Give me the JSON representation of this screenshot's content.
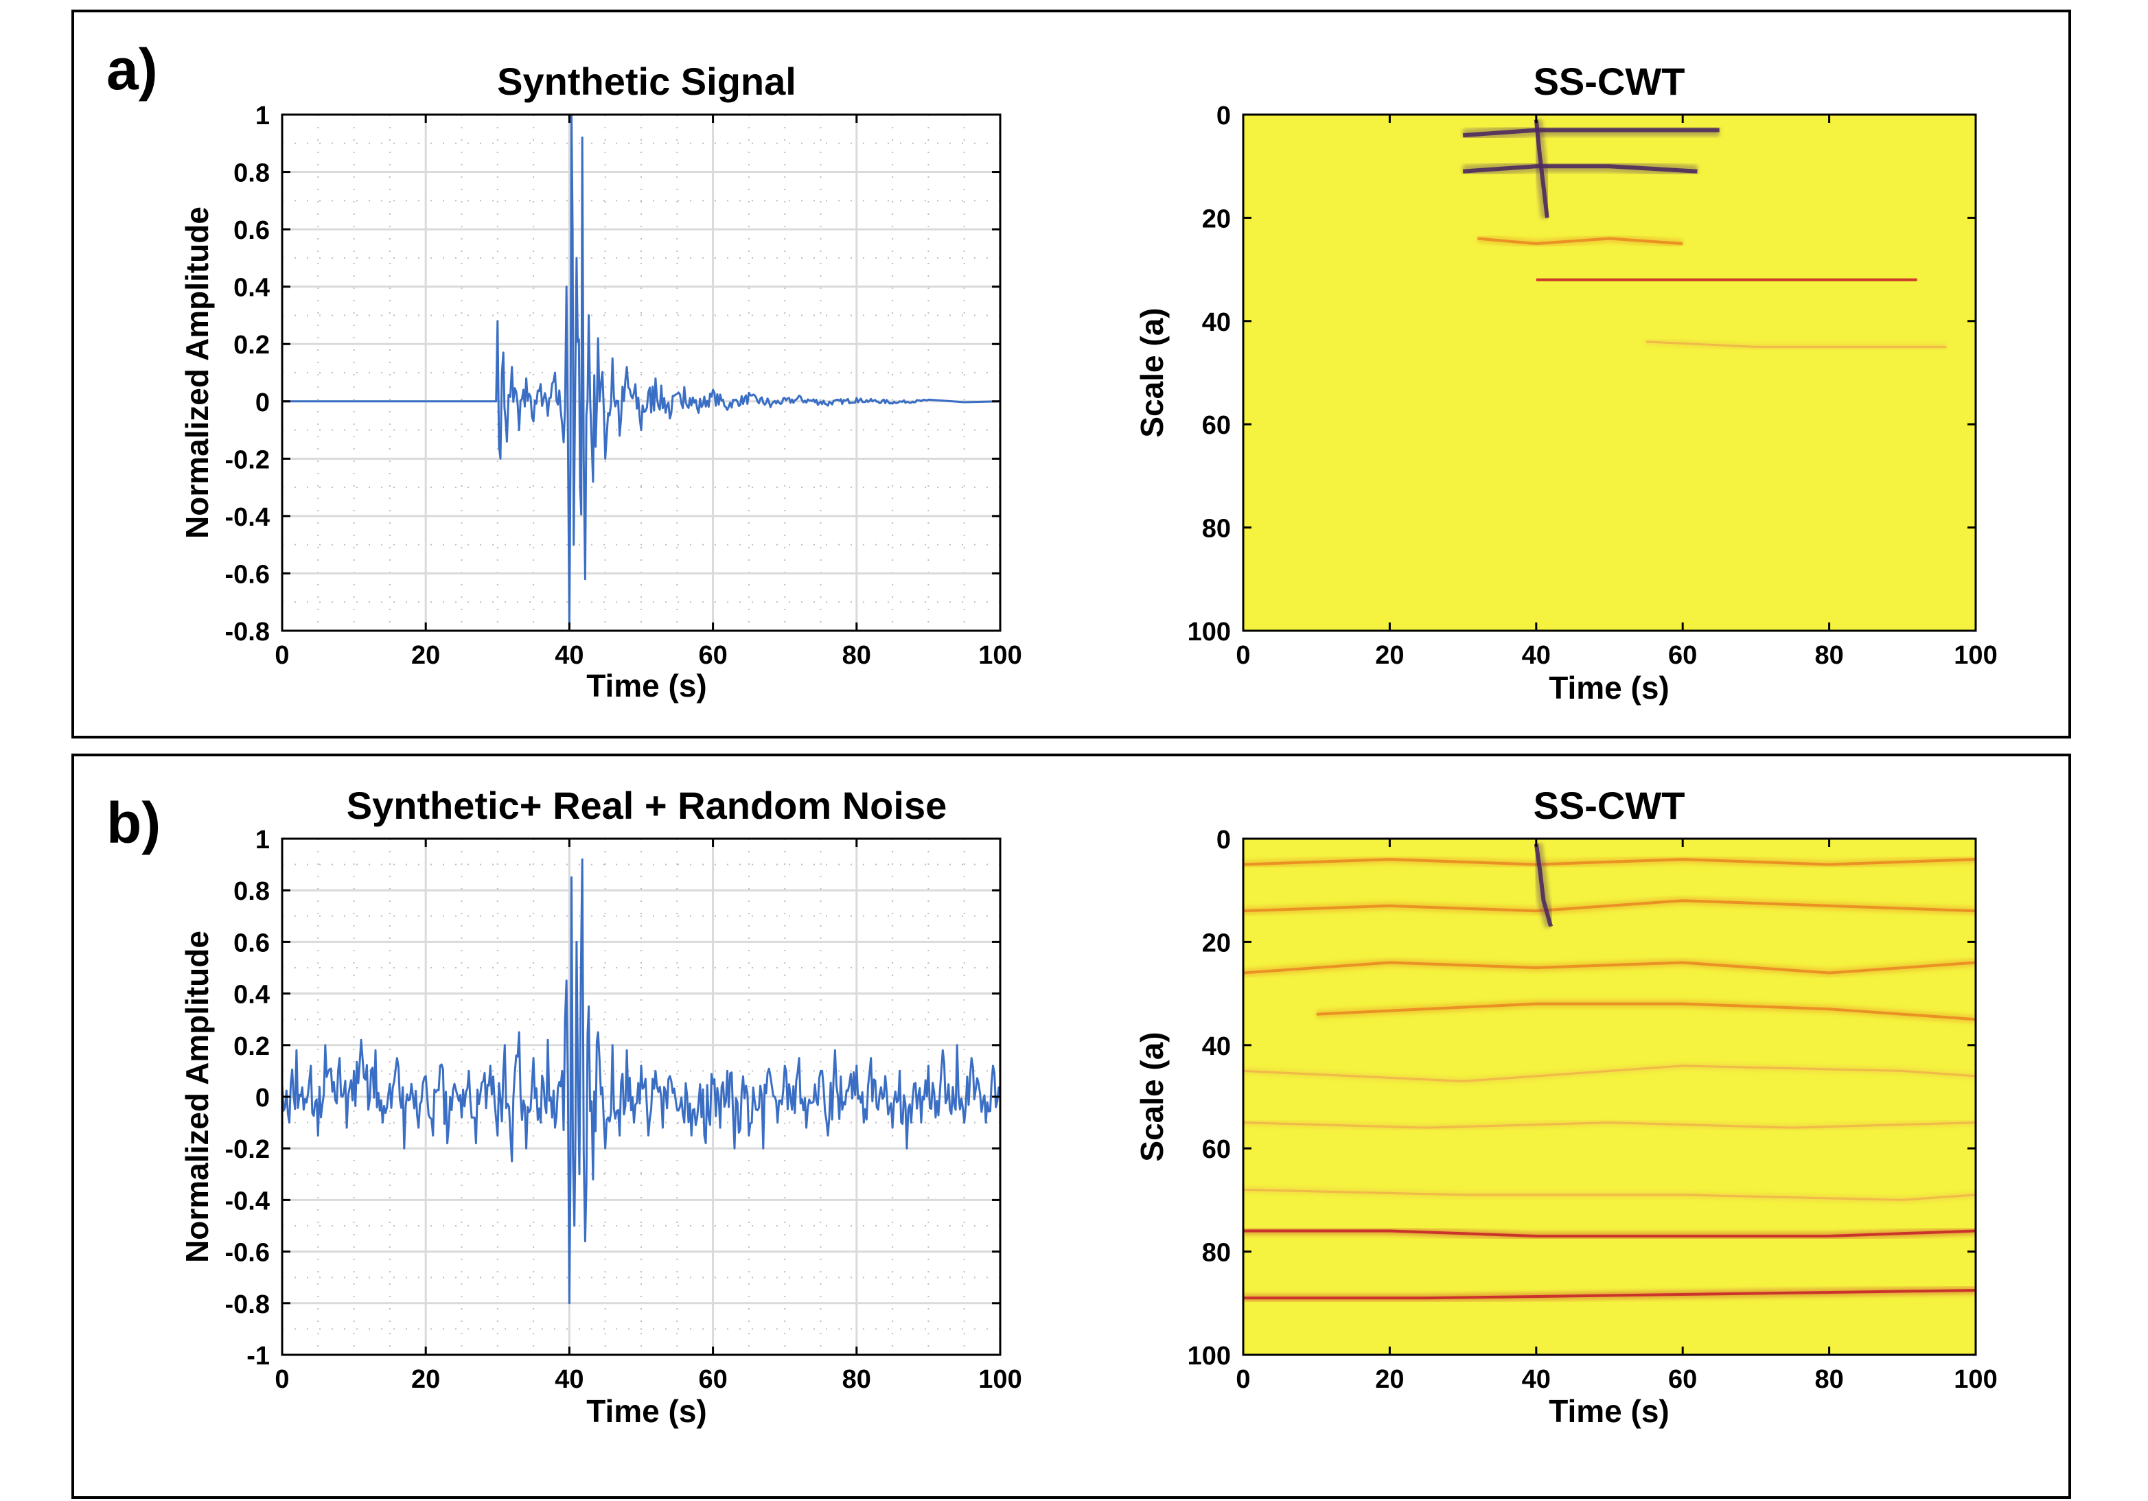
{
  "panels": [
    {
      "label": "a)"
    },
    {
      "label": "b)"
    }
  ],
  "colors": {
    "signal": "#3A6EC4",
    "grid": "#DADADA",
    "scalogram_bg": "#F5F33F",
    "ridge_orange": "#E98A22",
    "ridge_red": "#C7262A",
    "ridge_dark": "#4E2A5E"
  },
  "chart_data": [
    {
      "type": "line",
      "title": "Synthetic Signal",
      "xlabel": "Time (s)",
      "ylabel": "Normalized Amplitude",
      "xlim": [
        0,
        100
      ],
      "ylim": [
        -0.8,
        1
      ],
      "xticks": [
        "0",
        "20",
        "40",
        "60",
        "80",
        "100"
      ],
      "yticks": [
        "1",
        "0.8",
        "0.6",
        "0.4",
        "0.2",
        "0",
        "-0.2",
        "-0.4",
        "-0.6",
        "-0.8"
      ],
      "grid": true,
      "series": [
        {
          "description_points": "quiet until ~30 s, arrival at 30 s, strong burst at ~40–42 s, coda decaying to ~95 s",
          "x": [
            0,
            29.8,
            30.0,
            30.4,
            30.8,
            31.3,
            32,
            33,
            34,
            35,
            36,
            37,
            38,
            39,
            39.6,
            40.0,
            40.3,
            40.6,
            41.0,
            41.5,
            41.8,
            42.2,
            42.7,
            43.3,
            44,
            45,
            46,
            47,
            48,
            50,
            52,
            54,
            56,
            58,
            60,
            62,
            65,
            68,
            72,
            76,
            80,
            85,
            90,
            95,
            100
          ],
          "y": [
            0,
            0,
            0.28,
            -0.2,
            0.17,
            -0.14,
            0.12,
            -0.1,
            0.08,
            -0.07,
            0.06,
            -0.05,
            0.1,
            -0.08,
            0.4,
            -0.78,
            1.0,
            -0.5,
            0.5,
            -0.3,
            0.92,
            -0.62,
            0.3,
            -0.28,
            0.22,
            -0.2,
            0.15,
            -0.12,
            0.12,
            -0.1,
            0.08,
            -0.06,
            0.05,
            -0.04,
            0.04,
            -0.03,
            0.03,
            -0.02,
            0.02,
            -0.015,
            0.012,
            -0.008,
            0.006,
            -0.003,
            0
          ]
        }
      ]
    },
    {
      "type": "heatmap",
      "title": "SS-CWT",
      "xlabel": "Time  (s)",
      "ylabel": "Scale (a)",
      "xlim": [
        0,
        100
      ],
      "ylim": [
        0,
        100
      ],
      "y_reversed": true,
      "xticks": [
        "0",
        "20",
        "40",
        "60",
        "80",
        "100"
      ],
      "yticks": [
        "0",
        "20",
        "40",
        "60",
        "80",
        "100"
      ],
      "ridges": [
        {
          "x": [
            30,
            40,
            55,
            65
          ],
          "y": [
            4,
            3,
            3,
            3
          ],
          "intensity": "dark"
        },
        {
          "x": [
            30,
            40,
            50,
            62
          ],
          "y": [
            11,
            10,
            10,
            11
          ],
          "intensity": "dark"
        },
        {
          "x": [
            32,
            40,
            50,
            60
          ],
          "y": [
            24,
            25,
            24,
            25
          ],
          "intensity": "orange"
        },
        {
          "x": [
            40,
            50,
            60,
            70,
            80,
            92
          ],
          "y": [
            32,
            32,
            32,
            32,
            32,
            32
          ],
          "intensity": "red"
        },
        {
          "x": [
            55,
            70,
            85,
            96
          ],
          "y": [
            44,
            45,
            45,
            45
          ],
          "intensity": "faint"
        },
        {
          "x": [
            40,
            40.5,
            41,
            41.5
          ],
          "y": [
            1,
            8,
            14,
            20
          ],
          "intensity": "dark"
        }
      ]
    },
    {
      "type": "line",
      "title": "Synthetic+ Real + Random Noise",
      "xlabel": "Time (s)",
      "ylabel": "Normalized Amplitude",
      "xlim": [
        0,
        100
      ],
      "ylim": [
        -1,
        1
      ],
      "xticks": [
        "0",
        "20",
        "40",
        "60",
        "80",
        "100"
      ],
      "yticks": [
        "1",
        "0.8",
        "0.6",
        "0.4",
        "0.2",
        "0",
        "-0.2",
        "-0.4",
        "-0.6",
        "-0.8",
        "-1"
      ],
      "grid": true,
      "series": [
        {
          "x": [
            0,
            1,
            2,
            3,
            4,
            5,
            6,
            7,
            8,
            9,
            10,
            11,
            12,
            13,
            14,
            15,
            16,
            17,
            18,
            19,
            20,
            21,
            22,
            23,
            24,
            25,
            26,
            27,
            28,
            29,
            30,
            31,
            32,
            33,
            34,
            35,
            36,
            37,
            38,
            39,
            39.6,
            40.0,
            40.3,
            40.7,
            41.0,
            41.4,
            41.8,
            42.2,
            42.7,
            43.3,
            44,
            45,
            46,
            47,
            48,
            49,
            50,
            51,
            52,
            53,
            54,
            55,
            56,
            57,
            58,
            59,
            60,
            61,
            62,
            63,
            64,
            65,
            66,
            67,
            68,
            69,
            70,
            71,
            72,
            73,
            74,
            75,
            76,
            77,
            78,
            79,
            80,
            81,
            82,
            83,
            84,
            85,
            86,
            87,
            88,
            89,
            90,
            91,
            92,
            93,
            94,
            95,
            96,
            97,
            98,
            99,
            100
          ],
          "y": [
            0.05,
            -0.1,
            0.18,
            -0.05,
            0.12,
            -0.15,
            0.2,
            0.02,
            0.15,
            -0.12,
            0.1,
            0.22,
            -0.05,
            0.18,
            -0.1,
            0.05,
            0.15,
            -0.2,
            0.05,
            -0.12,
            0.08,
            -0.15,
            0.12,
            -0.18,
            0.05,
            -0.08,
            0.1,
            -0.18,
            0.06,
            0.12,
            -0.15,
            0.2,
            -0.25,
            0.25,
            -0.2,
            0.15,
            -0.1,
            0.22,
            -0.12,
            0.1,
            0.45,
            -0.8,
            0.85,
            -0.5,
            0.6,
            -0.3,
            0.92,
            -0.56,
            0.35,
            -0.32,
            0.25,
            -0.2,
            0.2,
            -0.15,
            0.18,
            -0.1,
            0.12,
            -0.15,
            0.1,
            -0.12,
            0.08,
            -0.05,
            -0.1,
            -0.15,
            -0.02,
            -0.18,
            0.05,
            -0.12,
            0.1,
            -0.2,
            0.02,
            -0.15,
            -0.05,
            -0.2,
            0.08,
            -0.1,
            0.12,
            -0.05,
            0.15,
            -0.12,
            -0.02,
            0.1,
            -0.15,
            0.18,
            -0.05,
            0.05,
            0.12,
            -0.1,
            0.15,
            -0.05,
            0.08,
            -0.12,
            0.1,
            -0.2,
            0.05,
            -0.1,
            0.12,
            -0.08,
            0.18,
            -0.05,
            0.2,
            -0.1,
            0.15,
            0.05,
            -0.1,
            0.12,
            0.02
          ]
        }
      ]
    },
    {
      "type": "heatmap",
      "title": "SS-CWT",
      "xlabel": "Time (s)",
      "ylabel": "Scale (a)",
      "xlim": [
        0,
        100
      ],
      "ylim": [
        0,
        100
      ],
      "y_reversed": true,
      "xticks": [
        "0",
        "20",
        "40",
        "60",
        "80",
        "100"
      ],
      "yticks": [
        "0",
        "20",
        "40",
        "60",
        "80",
        "100"
      ],
      "ridges": [
        {
          "x": [
            0,
            20,
            40,
            60,
            80,
            100
          ],
          "y": [
            5,
            4,
            5,
            4,
            5,
            4
          ],
          "intensity": "orange"
        },
        {
          "x": [
            0,
            20,
            40,
            60,
            80,
            100
          ],
          "y": [
            14,
            13,
            14,
            12,
            13,
            14
          ],
          "intensity": "orange"
        },
        {
          "x": [
            0,
            20,
            40,
            60,
            80,
            100
          ],
          "y": [
            26,
            24,
            25,
            24,
            26,
            24
          ],
          "intensity": "orange"
        },
        {
          "x": [
            10,
            40,
            60,
            80,
            100
          ],
          "y": [
            34,
            32,
            32,
            33,
            35
          ],
          "intensity": "orange"
        },
        {
          "x": [
            0,
            30,
            60,
            90,
            100
          ],
          "y": [
            45,
            47,
            44,
            45,
            46
          ],
          "intensity": "faint"
        },
        {
          "x": [
            0,
            25,
            50,
            75,
            100
          ],
          "y": [
            55,
            56,
            55,
            56,
            55
          ],
          "intensity": "faint"
        },
        {
          "x": [
            0,
            30,
            60,
            90,
            100
          ],
          "y": [
            68,
            69,
            69,
            70,
            69
          ],
          "intensity": "faint"
        },
        {
          "x": [
            0,
            20,
            40,
            60,
            80,
            100
          ],
          "y": [
            76,
            76,
            77,
            77,
            77,
            76
          ],
          "intensity": "red"
        },
        {
          "x": [
            0,
            25,
            50,
            75,
            100
          ],
          "y": [
            89,
            89,
            88.5,
            88,
            87.5
          ],
          "intensity": "red"
        },
        {
          "x": [
            40,
            40.5,
            41,
            42
          ],
          "y": [
            1,
            6,
            12,
            17
          ],
          "intensity": "dark"
        }
      ]
    }
  ]
}
